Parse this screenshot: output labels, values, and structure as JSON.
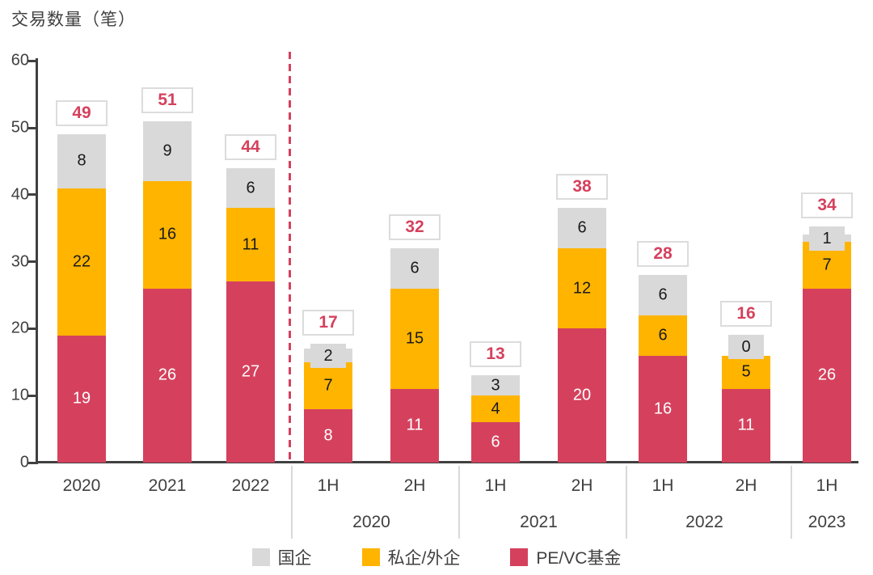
{
  "chart_data": {
    "type": "bar",
    "stacked": true,
    "title": "交易数量（笔）",
    "ylabel": "交易数量（笔）",
    "ylim": [
      0,
      60
    ],
    "y_ticks": [
      0,
      10,
      20,
      30,
      40,
      50,
      60
    ],
    "grid": false,
    "legend_position": "bottom",
    "series_order_bottom_to_top": [
      "PE/VC基金",
      "私企/外企",
      "国企"
    ],
    "legend": [
      {
        "key": "soe",
        "label": "国企",
        "color": "#D9D9D9"
      },
      {
        "key": "private",
        "label": "私企/外企",
        "color": "#FFB400"
      },
      {
        "key": "pevc",
        "label": "PE/VC基金",
        "color": "#D5415D"
      }
    ],
    "bars": [
      {
        "label": "2020",
        "pevc": 19,
        "private": 22,
        "soe": 8,
        "total": 49
      },
      {
        "label": "2021",
        "pevc": 26,
        "private": 16,
        "soe": 9,
        "total": 51
      },
      {
        "label": "2022",
        "pevc": 27,
        "private": 11,
        "soe": 6,
        "total": 44
      },
      {
        "label": "1H",
        "pevc": 8,
        "private": 7,
        "soe": 2,
        "total": 17
      },
      {
        "label": "2H",
        "pevc": 11,
        "private": 15,
        "soe": 6,
        "total": 32
      },
      {
        "label": "1H",
        "pevc": 6,
        "private": 4,
        "soe": 3,
        "total": 13
      },
      {
        "label": "2H",
        "pevc": 20,
        "private": 12,
        "soe": 6,
        "total": 38
      },
      {
        "label": "1H",
        "pevc": 16,
        "private": 6,
        "soe": 6,
        "total": 28
      },
      {
        "label": "2H",
        "pevc": 11,
        "private": 5,
        "soe": 0,
        "total": 16
      },
      {
        "label": "1H",
        "pevc": 26,
        "private": 7,
        "soe": 1,
        "total": 34
      }
    ],
    "groups": [
      {
        "label": "2020",
        "bars": [
          3,
          4
        ]
      },
      {
        "label": "2021",
        "bars": [
          5,
          6
        ]
      },
      {
        "label": "2022",
        "bars": [
          7,
          8
        ]
      },
      {
        "label": "2023",
        "bars": [
          9
        ]
      }
    ],
    "divider": "dashed line between annual and half-year bars"
  },
  "colors": {
    "soe": "#D9D9D9",
    "private": "#FFB400",
    "pevc": "#D5415D",
    "axis": "#404040",
    "total_text": "#D5415D",
    "box_border": "#DCDCDC",
    "separator": "#D9D9D9",
    "dashed_line": "#D5415D",
    "label_on_red": "#FFFFFF",
    "label_on_light": "#1A1A1A"
  }
}
